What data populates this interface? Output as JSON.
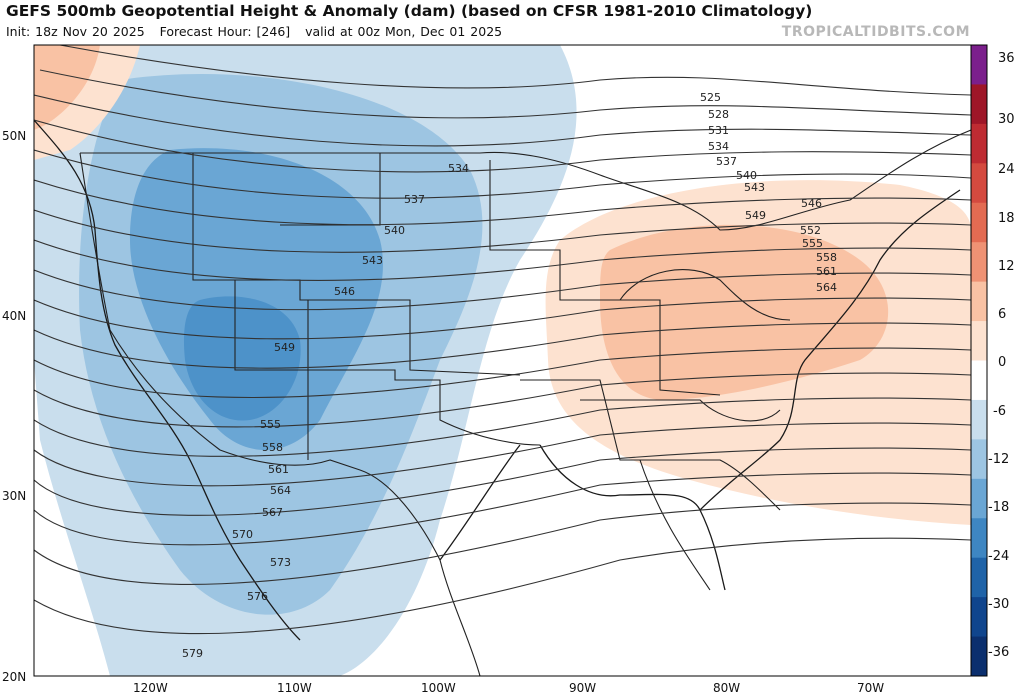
{
  "header": {
    "title": "GEFS 500mb Geopotential Height & Anomaly (dam) (based on CFSR 1981-2010 Climatology)",
    "init": "Init: 18z Nov 20 2025",
    "forecast_hour": "Forecast Hour: [246]",
    "valid": "valid at 00z Mon, Dec 01 2025",
    "credit": "TROPICALTIDBITS.COM"
  },
  "axes": {
    "lat_labels": [
      "50N",
      "40N",
      "30N",
      "20N"
    ],
    "lon_labels": [
      "120W",
      "110W",
      "100W",
      "90W",
      "80W",
      "70W"
    ]
  },
  "colorbar": {
    "labels": [
      "36",
      "30",
      "24",
      "18",
      "12",
      "6",
      "0",
      "-6",
      "-12",
      "-18",
      "-24",
      "-30",
      "-36"
    ],
    "colors": [
      "#7b1f8c",
      "#9e1628",
      "#be2b32",
      "#d44a3f",
      "#e36b52",
      "#ef9274",
      "#f9c2a4",
      "#fde2d0",
      "#ffffff",
      "#c9deed",
      "#9dc5e2",
      "#6aa6d4",
      "#3e86c2",
      "#1f63a8",
      "#10458d",
      "#0b2f6e"
    ]
  },
  "contours": {
    "labels": [
      "525",
      "528",
      "531",
      "534",
      "537",
      "540",
      "543",
      "546",
      "549",
      "552",
      "555",
      "558",
      "561",
      "564",
      "567",
      "570",
      "573",
      "576",
      "579"
    ],
    "west_labels": [
      "534",
      "537",
      "540",
      "543",
      "546",
      "549",
      "555",
      "558",
      "561",
      "564",
      "567",
      "570",
      "573",
      "576",
      "579"
    ],
    "east_labels": [
      "525",
      "528",
      "531",
      "534",
      "537",
      "540",
      "543",
      "549",
      "546",
      "552",
      "555",
      "558",
      "561",
      "564"
    ]
  },
  "colors": {
    "cold_anomaly": "#9dc5e2",
    "warm_anomaly": "#f9c2a4",
    "contour": "#333333",
    "border": "#222222"
  }
}
